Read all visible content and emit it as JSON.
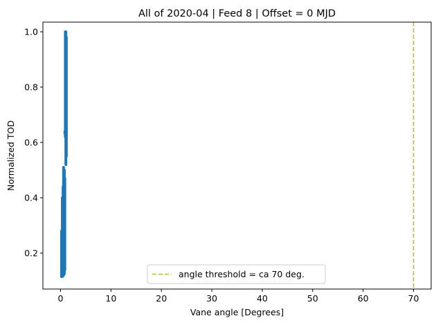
{
  "chart_data": {
    "type": "scatter",
    "title": "All of 2020-04 | Feed 8 | Offset = 0 MJD",
    "xlabel": "Vane angle [Degrees]",
    "ylabel": "Normalized TOD",
    "xlim": [
      -3.5,
      73.5
    ],
    "ylim": [
      0.07,
      1.035
    ],
    "xticks": [
      0,
      10,
      20,
      30,
      40,
      50,
      60,
      70
    ],
    "yticks": [
      0.2,
      0.4,
      0.6,
      0.8,
      1.0
    ],
    "xtick_labels": [
      "0",
      "10",
      "20",
      "30",
      "40",
      "50",
      "60",
      "70"
    ],
    "ytick_labels": [
      "0.2",
      "0.4",
      "0.6",
      "0.8",
      "1.0"
    ],
    "grid": false,
    "legend": {
      "placement": "lower-center",
      "entries": [
        "angle threshold = ca 70 deg."
      ]
    },
    "series": [
      {
        "kind": "scatter",
        "color": "#1f77b4",
        "segments": [
          {
            "x": 0.2,
            "y_min": 0.115,
            "y_max": 0.28
          },
          {
            "x": 0.35,
            "y_min": 0.115,
            "y_max": 0.4
          },
          {
            "x": 0.5,
            "y_min": 0.12,
            "y_max": 0.44
          },
          {
            "x": 0.6,
            "y_min": 0.12,
            "y_max": 0.51
          },
          {
            "x": 0.75,
            "y_min": 0.125,
            "y_max": 0.5
          },
          {
            "x": 0.85,
            "y_min": 0.14,
            "y_max": 0.47
          },
          {
            "x": 0.95,
            "y_min": 0.62,
            "y_max": 1.0
          },
          {
            "x": 1.05,
            "y_min": 0.52,
            "y_max": 1.0
          },
          {
            "x": 1.15,
            "y_min": 0.55,
            "y_max": 0.98
          }
        ],
        "points": [
          {
            "x": 0.9,
            "y": 0.635
          },
          {
            "x": 0.95,
            "y": 0.64
          },
          {
            "x": 1.0,
            "y": 0.625
          }
        ]
      },
      {
        "kind": "vline",
        "name": "angle threshold = ca 70 deg.",
        "x": 70,
        "color": "#bcbd22",
        "style": "dashed"
      }
    ]
  }
}
